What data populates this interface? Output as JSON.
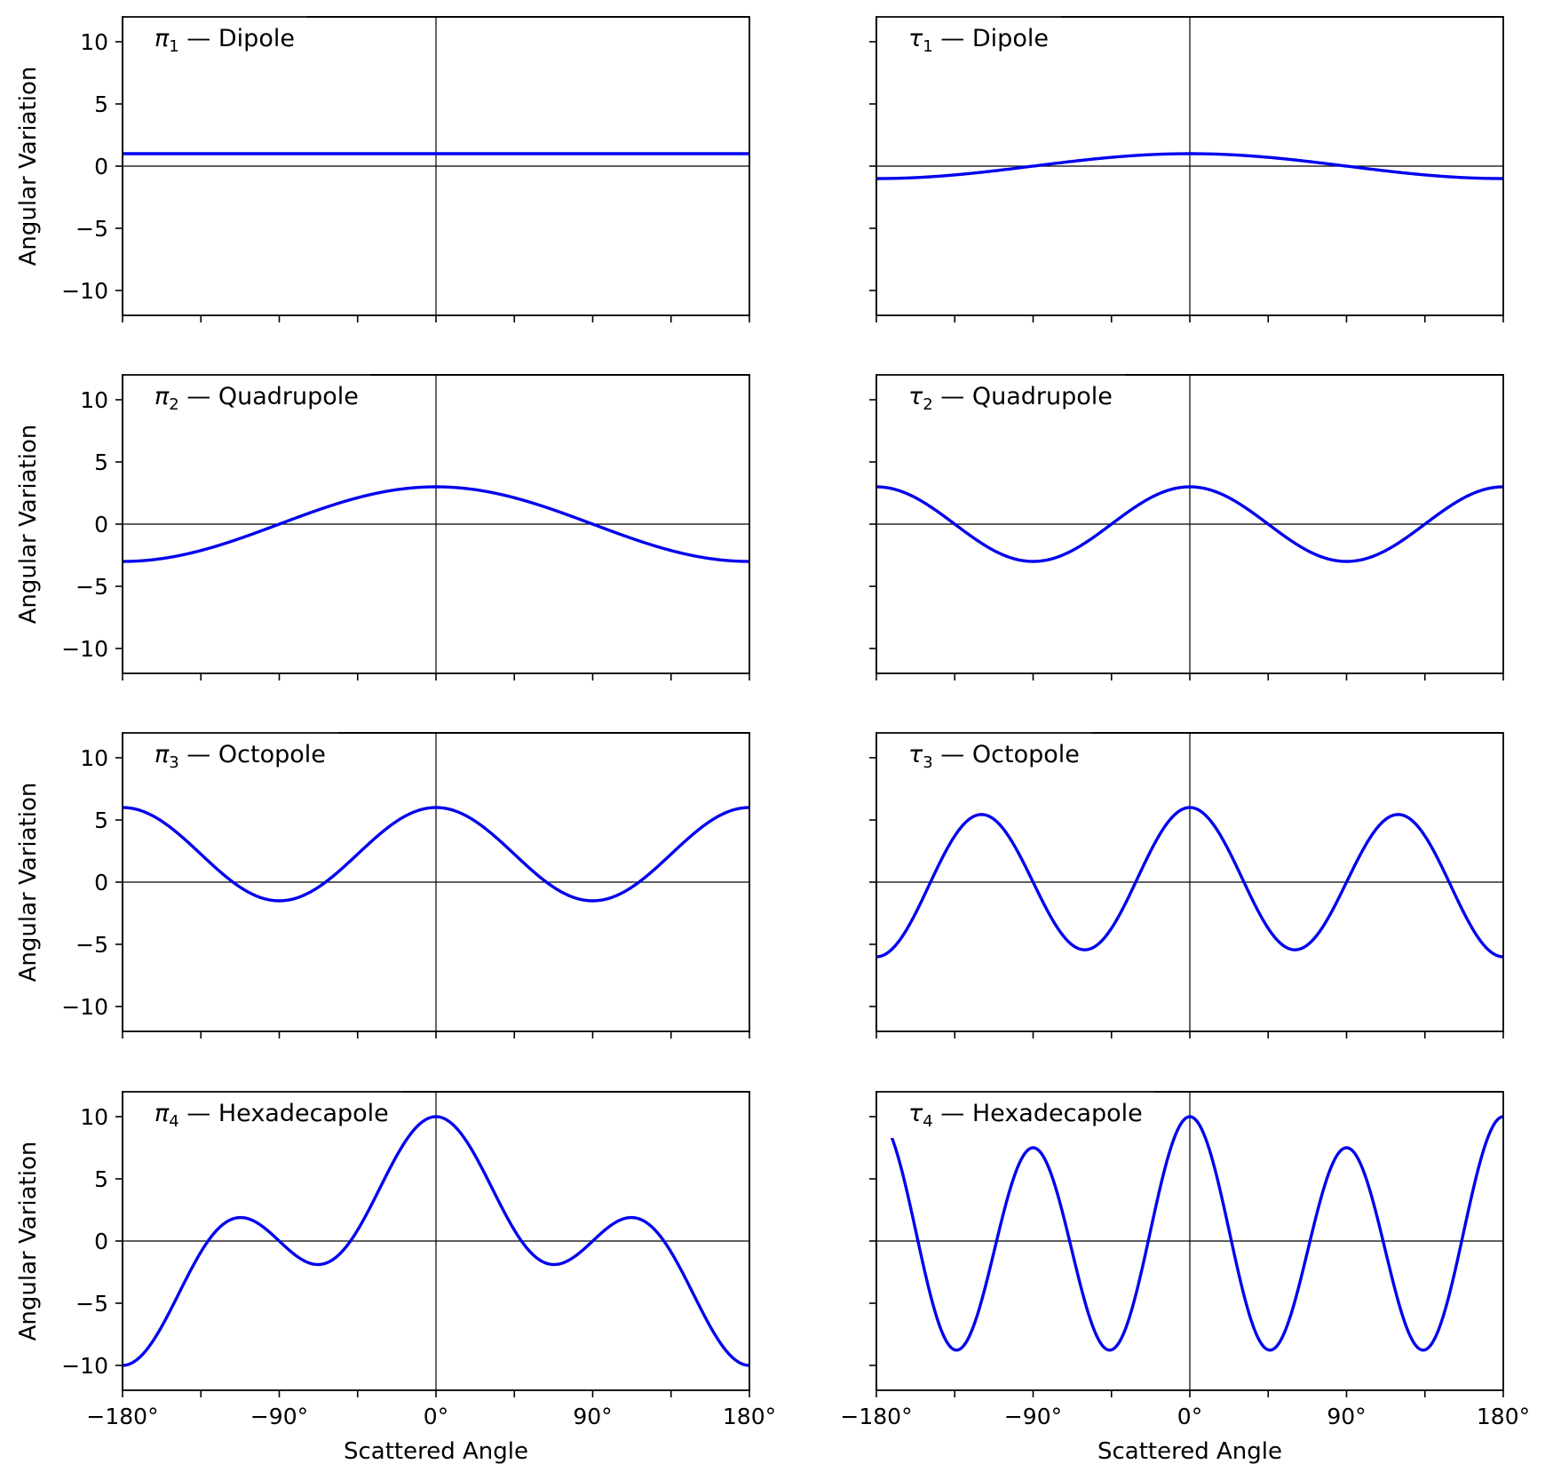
{
  "chart_data": {
    "type": "line",
    "layout": "4 rows x 2 columns, shared axes",
    "xlabel": "Scattered Angle",
    "ylabel": "Angular Variation",
    "xlim": [
      -180,
      180
    ],
    "ylim": [
      -12,
      12
    ],
    "x_ticks": [
      -180,
      -135,
      -90,
      -45,
      0,
      45,
      90,
      135,
      180
    ],
    "x_tick_labels": [
      "-180°",
      "",
      "-90°",
      "",
      "0°",
      "",
      "90°",
      "",
      "180°"
    ],
    "y_ticks": [
      -10,
      -5,
      0,
      5,
      10
    ],
    "y_tick_labels": [
      "-10",
      "-5",
      "0",
      "5",
      "10"
    ],
    "zero_lines": true,
    "grid": false,
    "line_color": "#0000ee",
    "panels": [
      {
        "row": 0,
        "col": 0,
        "symbol": "π",
        "subscript": "1",
        "label": " — Dipole",
        "function": "pi",
        "order": 1,
        "values_at_x_ticks": [
          1,
          1,
          1,
          1,
          1,
          1,
          1,
          1,
          1
        ]
      },
      {
        "row": 0,
        "col": 1,
        "symbol": "τ",
        "subscript": "1",
        "label": " — Dipole",
        "function": "tau",
        "order": 1,
        "values_at_x_ticks": [
          -1,
          -0.71,
          0,
          0.71,
          1,
          0.71,
          0,
          -0.71,
          -1
        ]
      },
      {
        "row": 1,
        "col": 0,
        "symbol": "π",
        "subscript": "2",
        "label": " — Quadrupole",
        "function": "pi",
        "order": 2,
        "values_at_x_ticks": [
          -3,
          -2.12,
          0,
          2.12,
          3,
          2.12,
          0,
          -2.12,
          -3
        ]
      },
      {
        "row": 1,
        "col": 1,
        "symbol": "τ",
        "subscript": "2",
        "label": " — Quadrupole",
        "function": "tau",
        "order": 2,
        "values_at_x_ticks": [
          3,
          0,
          -3,
          0,
          3,
          0,
          -3,
          0,
          3
        ]
      },
      {
        "row": 2,
        "col": 0,
        "symbol": "π",
        "subscript": "3",
        "label": " — Octopole",
        "function": "pi",
        "order": 3,
        "values_at_x_ticks": [
          6,
          2.65,
          -1.5,
          2.65,
          6,
          2.65,
          -1.5,
          2.65,
          6
        ]
      },
      {
        "row": 2,
        "col": 1,
        "symbol": "τ",
        "subscript": "3",
        "label": " — Octopole",
        "function": "tau",
        "order": 3,
        "values_at_x_ticks": [
          -6,
          4.24,
          0,
          -4.24,
          6,
          -4.24,
          0,
          4.24,
          -6
        ]
      },
      {
        "row": 3,
        "col": 0,
        "symbol": "π",
        "subscript": "4",
        "label": " — Hexadecapole",
        "function": "pi",
        "order": 4,
        "values_at_x_ticks": [
          -10,
          0.88,
          0,
          -0.88,
          10,
          -0.88,
          0,
          0.88,
          -10
        ]
      },
      {
        "row": 3,
        "col": 1,
        "symbol": "τ",
        "subscript": "4",
        "label": " — Hexadecapole",
        "function": "tau",
        "order": 4,
        "values_at_x_ticks": [
          10,
          -8.84,
          7.5,
          -8.84,
          10,
          -8.84,
          7.5,
          -8.84,
          10
        ]
      }
    ]
  }
}
